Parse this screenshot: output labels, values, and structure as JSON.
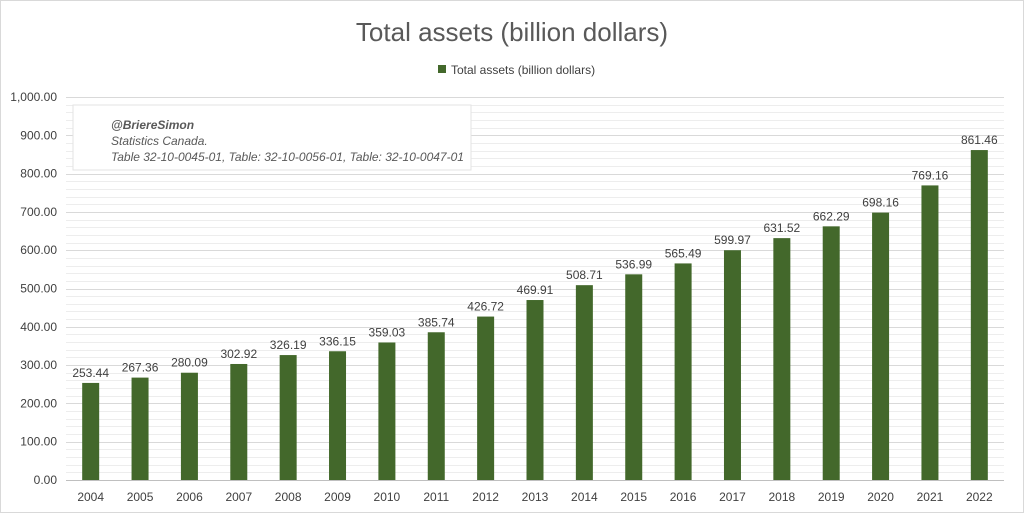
{
  "chart_data": {
    "type": "bar",
    "title": "Total assets (billion dollars)",
    "series": [
      {
        "name": "Total assets (billion dollars)",
        "color": "#43682b",
        "values": [
          253.44,
          267.36,
          280.09,
          302.92,
          326.19,
          336.15,
          359.03,
          385.74,
          426.72,
          469.91,
          508.71,
          536.99,
          565.49,
          599.97,
          631.52,
          662.29,
          698.16,
          769.16,
          861.46
        ]
      }
    ],
    "categories": [
      "2004",
      "2005",
      "2006",
      "2007",
      "2008",
      "2009",
      "2010",
      "2011",
      "2012",
      "2013",
      "2014",
      "2015",
      "2016",
      "2017",
      "2018",
      "2019",
      "2020",
      "2021",
      "2022"
    ],
    "value_labels": [
      "253.44",
      "267.36",
      "280.09",
      "302.92",
      "326.19",
      "336.15",
      "359.03",
      "385.74",
      "426.72",
      "469.91",
      "508.71",
      "536.99",
      "565.49",
      "599.97",
      "631.52",
      "662.29",
      "698.16",
      "769.16",
      "861.46"
    ],
    "y_ticks": [
      "0.00",
      "100.00",
      "200.00",
      "300.00",
      "400.00",
      "500.00",
      "600.00",
      "700.00",
      "800.00",
      "900.00",
      "1,000.00"
    ],
    "ylim": [
      0,
      1000
    ],
    "minor_step": 20,
    "xlabel": "",
    "ylabel": "",
    "legend_position": "top",
    "grid": true,
    "annotation": {
      "author": "@BriereSimon",
      "source": "Statistics Canada.",
      "tables": "Table 32-10-0045-01, Table: 32-10-0056-01, Table: 32-10-0047-01"
    }
  }
}
